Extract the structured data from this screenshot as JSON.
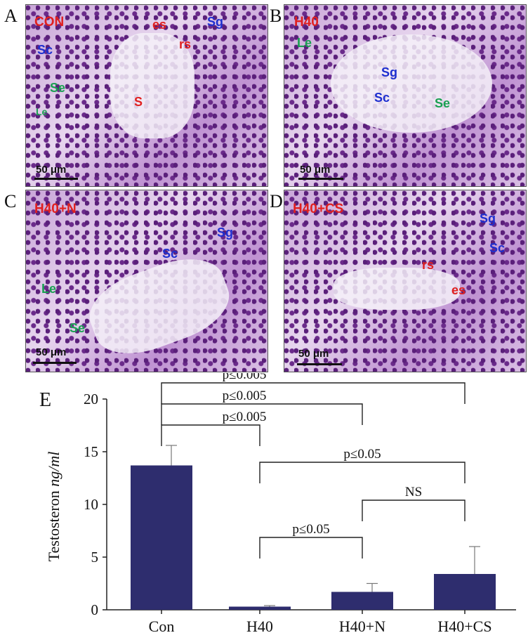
{
  "panels": [
    {
      "letter": "A",
      "condition": "CON",
      "scale": "50 μm",
      "labels": [
        {
          "text": "es",
          "color": "red"
        },
        {
          "text": "Sg",
          "color": "blue"
        },
        {
          "text": "Sc",
          "color": "blue"
        },
        {
          "text": "rs",
          "color": "red"
        },
        {
          "text": "Se",
          "color": "green"
        },
        {
          "text": "S",
          "color": "red"
        },
        {
          "text": "Le",
          "color": "green"
        }
      ]
    },
    {
      "letter": "B",
      "condition": "H40",
      "scale": "50 μm",
      "labels": [
        {
          "text": "Le",
          "color": "green"
        },
        {
          "text": "Sg",
          "color": "blue"
        },
        {
          "text": "Sc",
          "color": "blue"
        },
        {
          "text": "Se",
          "color": "green"
        }
      ]
    },
    {
      "letter": "C",
      "condition": "H40+N",
      "scale": "50 μm",
      "labels": [
        {
          "text": "Sg",
          "color": "blue"
        },
        {
          "text": "Sc",
          "color": "blue"
        },
        {
          "text": "Le",
          "color": "green"
        },
        {
          "text": "Se",
          "color": "green"
        }
      ]
    },
    {
      "letter": "D",
      "condition": "H40+CS",
      "scale": "50 μm",
      "labels": [
        {
          "text": "Sg",
          "color": "blue"
        },
        {
          "text": "Sc",
          "color": "blue"
        },
        {
          "text": "rs",
          "color": "red"
        },
        {
          "text": "es",
          "color": "red"
        }
      ]
    }
  ],
  "chart_panel_letter": "E",
  "colors": {
    "bar": "#2e2d6e",
    "label_red": "#e02020",
    "label_blue": "#1e2fd0",
    "label_green": "#1aa052"
  },
  "chart_data": {
    "type": "bar",
    "categories": [
      "Con",
      "H40",
      "H40+N",
      "H40+CS"
    ],
    "values": [
      13.7,
      0.3,
      1.7,
      3.4
    ],
    "errors": [
      1.9,
      0.1,
      0.8,
      2.6
    ],
    "ylabel_main": "Testosteron",
    "ylabel_unit": "ng/ml",
    "ylim": [
      0,
      20
    ],
    "yticks": [
      0,
      5,
      10,
      15,
      20
    ],
    "comparisons": [
      {
        "from": 0,
        "to": 3,
        "label": "p≤0.005"
      },
      {
        "from": 0,
        "to": 2,
        "label": "p≤0.005"
      },
      {
        "from": 0,
        "to": 1,
        "label": "p≤0.005"
      },
      {
        "from": 1,
        "to": 3,
        "label": "p≤0.05"
      },
      {
        "from": 2,
        "to": 3,
        "label": "NS"
      },
      {
        "from": 1,
        "to": 2,
        "label": "p≤0.05"
      }
    ]
  }
}
